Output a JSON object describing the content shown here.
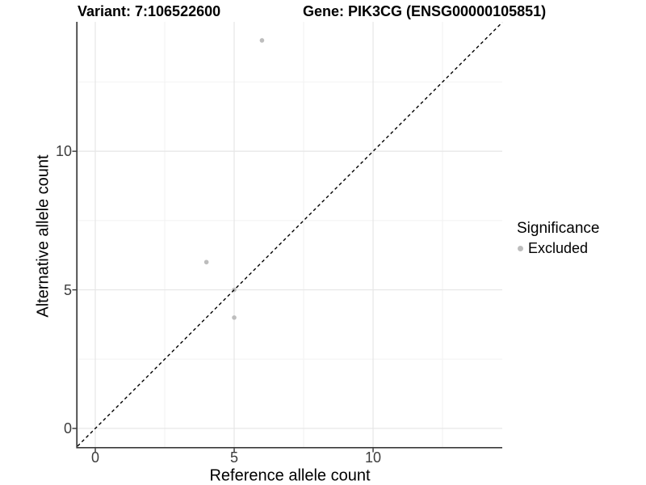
{
  "chart_data": {
    "type": "scatter",
    "title_left": "Variant: 7:106522600",
    "title_right": "Gene: PIK3CG (ENSG00000105851)",
    "xlabel": "Reference allele count",
    "ylabel": "Alternative allele count",
    "xlim": [
      -0.64,
      14.65
    ],
    "ylim": [
      -0.67,
      14.67
    ],
    "x_major_ticks": [
      0,
      5,
      10
    ],
    "y_major_ticks": [
      0,
      5,
      10
    ],
    "x_minor_ticks": [
      2.5,
      7.5,
      12.5
    ],
    "y_minor_ticks": [
      2.5,
      7.5,
      12.5
    ],
    "grid": true,
    "identity_line": {
      "equation": "y = x",
      "style": "dashed",
      "color": "#000000"
    },
    "series": [
      {
        "name": "Excluded",
        "color": "#bdbdbd",
        "points": [
          {
            "x": 6,
            "y": 14
          },
          {
            "x": 4,
            "y": 6
          },
          {
            "x": 5,
            "y": 5
          },
          {
            "x": 5,
            "y": 4
          }
        ]
      }
    ],
    "legend": {
      "title": "Significance",
      "position": "right",
      "items": [
        {
          "label": "Excluded",
          "color": "#bdbdbd"
        }
      ]
    },
    "colors": {
      "point": "#bdbdbd",
      "grid_major": "#e6e6e6",
      "grid_minor": "#f2f2f2",
      "axis_line": "#3a3a3a",
      "tick_mark": "#333333",
      "tick_text": "#3d3d3d",
      "dashed_line": "#000000",
      "background": "#ffffff"
    }
  }
}
